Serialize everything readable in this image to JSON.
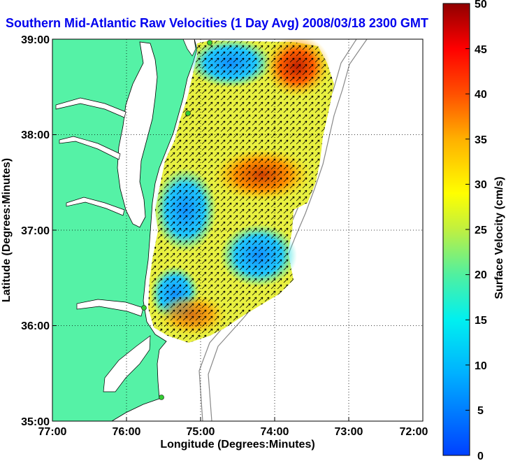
{
  "title": "Southern Mid-Atlantic Raw Velocities (1 Day Avg) 2008/03/18 2300 GMT",
  "axes": {
    "xlabel": "Longitude (Degrees:Minutes)",
    "ylabel": "Latitude (Degrees:Minutes)",
    "x_ticks": [
      "77:00",
      "76:00",
      "75:00",
      "74:00",
      "73:00",
      "72:00"
    ],
    "y_ticks": [
      "39:00",
      "38:00",
      "37:00",
      "36:00",
      "35:00"
    ]
  },
  "colorbar": {
    "label": "Surface Velocity (cm/s)",
    "ticks": [
      "50",
      "45",
      "40",
      "35",
      "30",
      "25",
      "20",
      "15",
      "10",
      "5",
      "0"
    ],
    "range": [
      0,
      50
    ]
  },
  "colors": {
    "land": "#55f2a6",
    "water": "#ffffff",
    "title": "#0000ee",
    "station": "#33cc33"
  }
}
